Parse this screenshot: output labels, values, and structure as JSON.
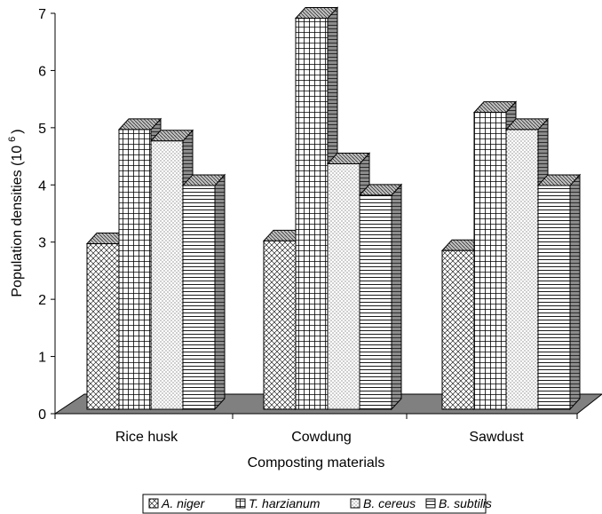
{
  "chart_data": {
    "type": "bar",
    "three_d": true,
    "title": "",
    "xlabel": "Composting materials",
    "ylabel": "Population densities (10",
    "ylabel_superscript": "6",
    "ylabel_close": ")",
    "ylim": [
      0,
      7
    ],
    "yticks": [
      "0",
      "1",
      "2",
      "3",
      "4",
      "5",
      "6",
      "7"
    ],
    "categories": [
      "Rice husk",
      "Cowdung",
      "Sawdust"
    ],
    "series": [
      {
        "name": "A. niger",
        "values": [
          2.9,
          2.95,
          2.78
        ],
        "pattern": "diag-cross"
      },
      {
        "name": "T. harzianum",
        "values": [
          4.9,
          6.85,
          5.2
        ],
        "pattern": "grid"
      },
      {
        "name": "B. cereus",
        "values": [
          4.7,
          4.3,
          4.9
        ],
        "pattern": "dots"
      },
      {
        "name": "B. subtilis",
        "values": [
          3.92,
          3.75,
          3.92
        ],
        "pattern": "hlines"
      }
    ],
    "legend_position": "bottom",
    "grid": false,
    "colors": {
      "floor": "#808080",
      "bar": "#ffffff",
      "stroke": "#000000",
      "side": "#808080"
    }
  }
}
